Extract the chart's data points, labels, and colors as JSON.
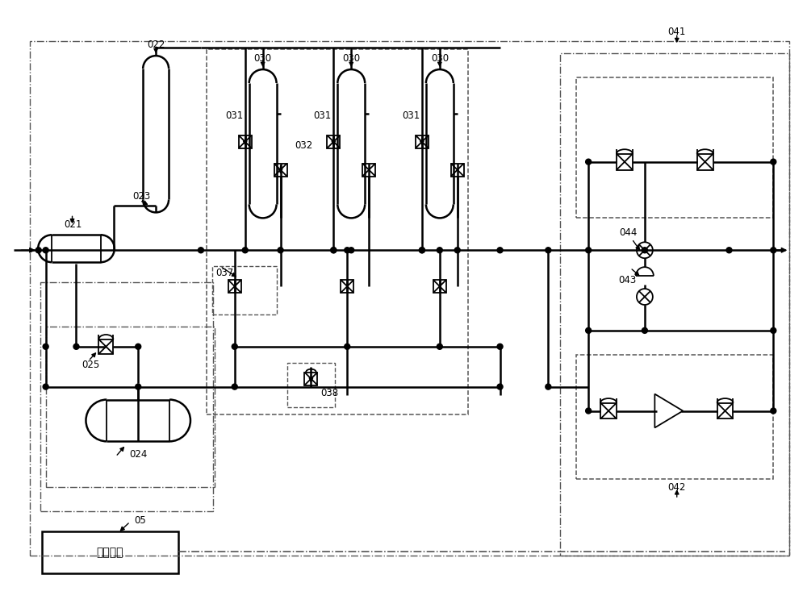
{
  "bg_color": "#ffffff",
  "lw_main": 1.8,
  "lw_thin": 1.3,
  "lw_dash": 1.1
}
